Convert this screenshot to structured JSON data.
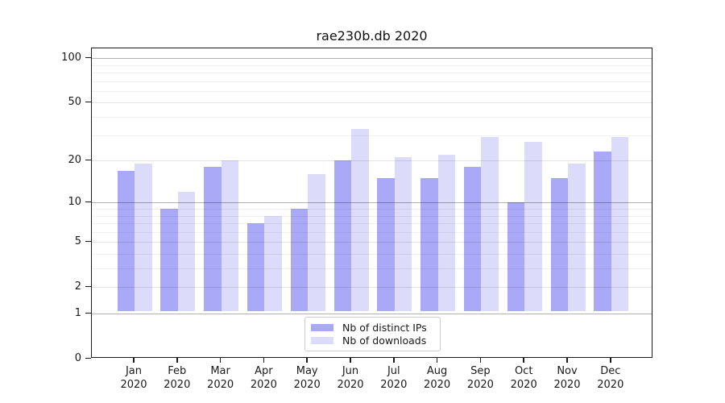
{
  "title": "rae230b.db 2020",
  "chart_data": {
    "type": "bar",
    "title": "rae230b.db 2020",
    "categories": [
      "Jan 2020",
      "Feb 2020",
      "Mar 2020",
      "Apr 2020",
      "May 2020",
      "Jun 2020",
      "Jul 2020",
      "Aug 2020",
      "Sep 2020",
      "Oct 2020",
      "Nov 2020",
      "Dec 2020"
    ],
    "series": [
      {
        "name": "Nb of distinct IPs",
        "color": "#a9a9f7",
        "values": [
          17,
          9,
          18,
          7,
          9,
          20,
          15,
          15,
          18,
          10,
          15,
          23
        ]
      },
      {
        "name": "Nb of downloads",
        "color": "#dcdcfa",
        "values": [
          19,
          12,
          20,
          8,
          16,
          33,
          21,
          22,
          29,
          27,
          19,
          29
        ]
      }
    ],
    "xlabel": "",
    "ylabel": "",
    "yscale": "log1p",
    "ylim": [
      0,
      115
    ],
    "yticks": [
      0,
      1,
      2,
      5,
      10,
      20,
      50,
      100
    ],
    "grid": "on",
    "legend_position": "lower center"
  },
  "colors": {
    "bar_distinct_ips": "#a9a9f7",
    "bar_downloads": "#dcdcfa",
    "axis": "#1a1a1a",
    "grid_major": "rgba(0,0,0,0.30)",
    "grid_mid": "rgba(0,0,0,0.11)",
    "grid_minor": "rgba(0,0,0,0.055)",
    "legend_border": "#cccccc"
  }
}
